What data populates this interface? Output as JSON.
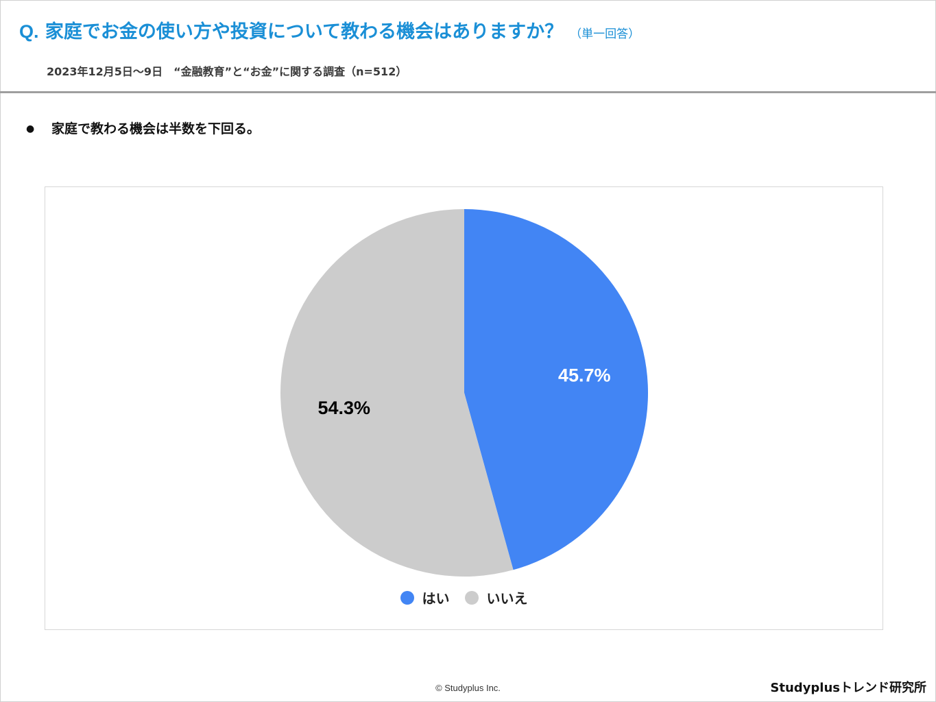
{
  "header": {
    "question_prefix": "Q.",
    "question": "家庭でお金の使い方や投資について教わる機会はありますか？",
    "answer_type": "（単一回答）",
    "survey_info": "2023年12月5日～9日　“金融教育”と“お金”に関する調査（n=512）"
  },
  "finding": {
    "bullet": "●",
    "text": "家庭で教わる機会は半数を下回る。"
  },
  "chart_data": {
    "type": "pie",
    "categories": [
      "はい",
      "いいえ"
    ],
    "values": [
      45.7,
      54.3
    ],
    "unit": "%",
    "labels": [
      "45.7%",
      "54.3%"
    ],
    "colors": [
      "#4285f4",
      "#cccccc"
    ],
    "label_colors": [
      "#ffffff",
      "#000000"
    ],
    "start_angle_deg": 0,
    "direction": "clockwise",
    "legend_position": "bottom"
  },
  "footer": {
    "copyright": "© Studyplus Inc.",
    "brand": "Studyplusトレンド研究所"
  }
}
